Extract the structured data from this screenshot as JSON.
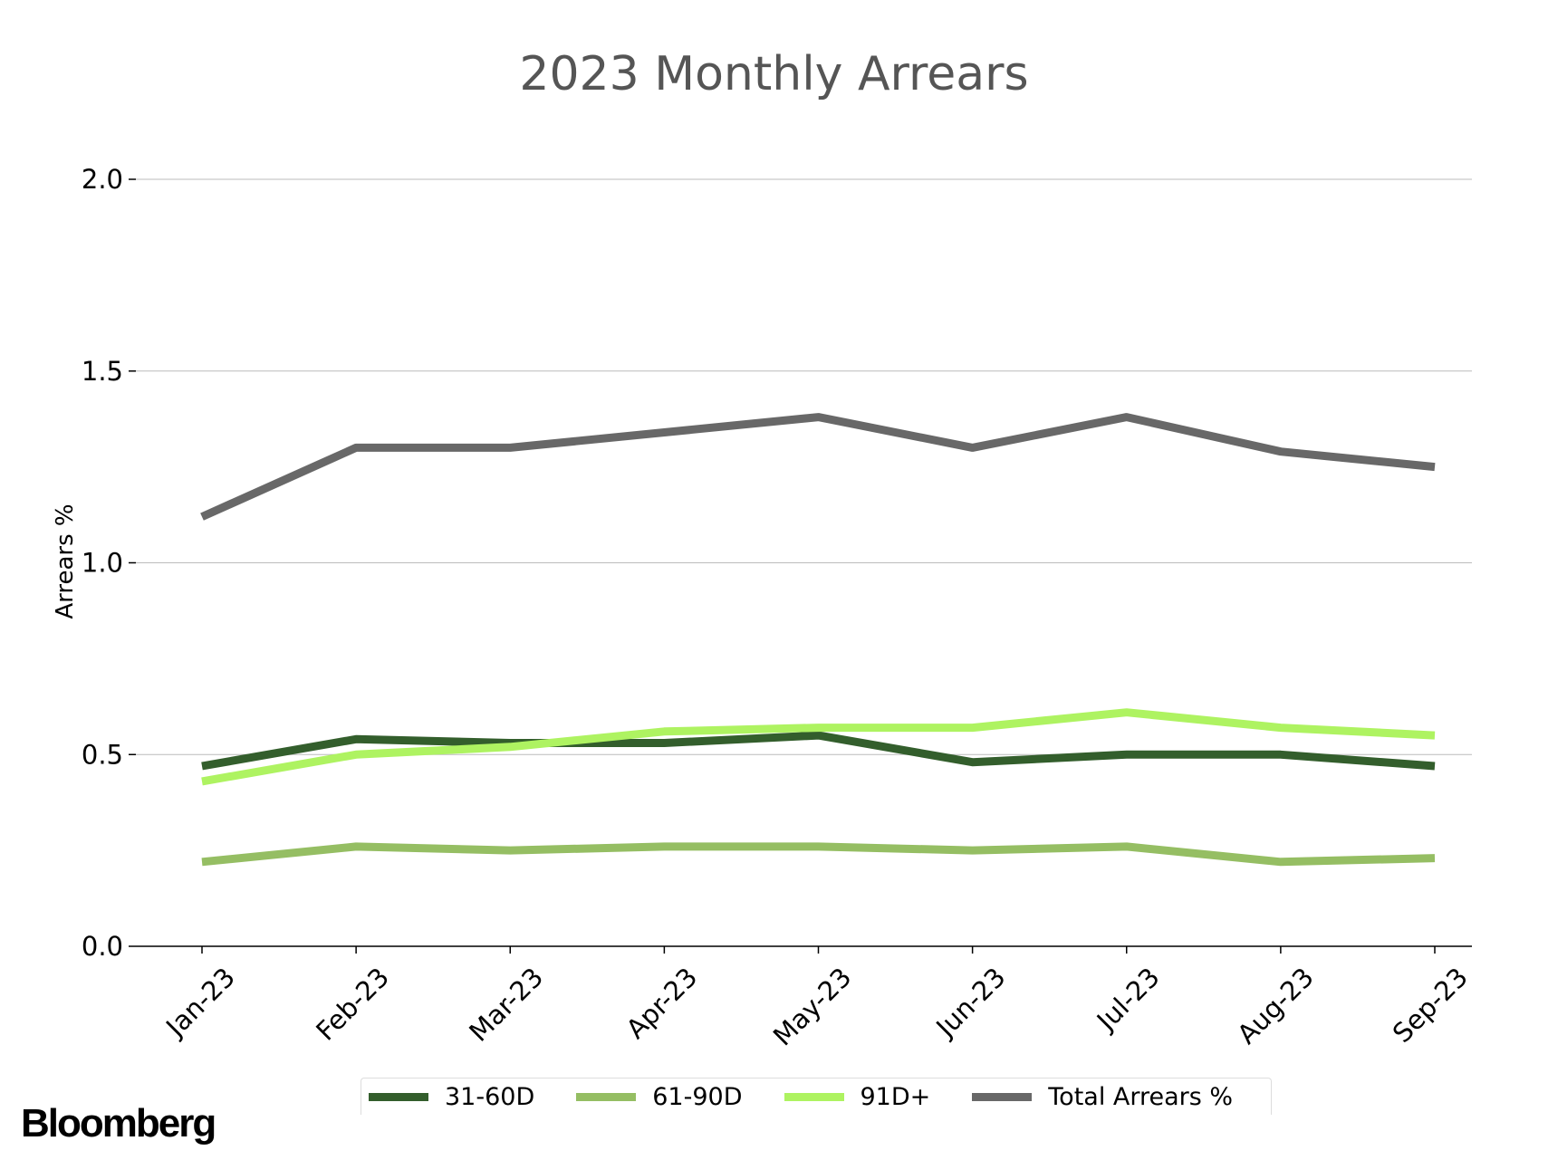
{
  "chart_data": {
    "type": "line",
    "title": "2023 Monthly Arrears",
    "xlabel": "",
    "ylabel": "Arrears %",
    "categories": [
      "Jan-23",
      "Feb-23",
      "Mar-23",
      "Apr-23",
      "May-23",
      "Jun-23",
      "Jul-23",
      "Aug-23",
      "Sep-23"
    ],
    "ylim": [
      0,
      2.0
    ],
    "yticks": [
      "0.0",
      "0.5",
      "1.0",
      "1.5",
      "2.0"
    ],
    "grid": true,
    "legend_position": "bottom",
    "series": [
      {
        "name": "31-60D",
        "color": "#335e2c",
        "values": [
          0.47,
          0.54,
          0.53,
          0.53,
          0.55,
          0.48,
          0.5,
          0.5,
          0.47
        ]
      },
      {
        "name": "61-90D",
        "color": "#95be63",
        "values": [
          0.22,
          0.26,
          0.25,
          0.26,
          0.26,
          0.25,
          0.26,
          0.22,
          0.23
        ]
      },
      {
        "name": "91D+",
        "color": "#aef361",
        "values": [
          0.43,
          0.5,
          0.52,
          0.56,
          0.57,
          0.57,
          0.61,
          0.57,
          0.55
        ]
      },
      {
        "name": "Total Arrears %",
        "color": "#686868",
        "values": [
          1.12,
          1.3,
          1.3,
          1.34,
          1.38,
          1.3,
          1.38,
          1.29,
          1.25
        ]
      }
    ]
  },
  "branding": {
    "logo_text": "Bloomberg"
  }
}
